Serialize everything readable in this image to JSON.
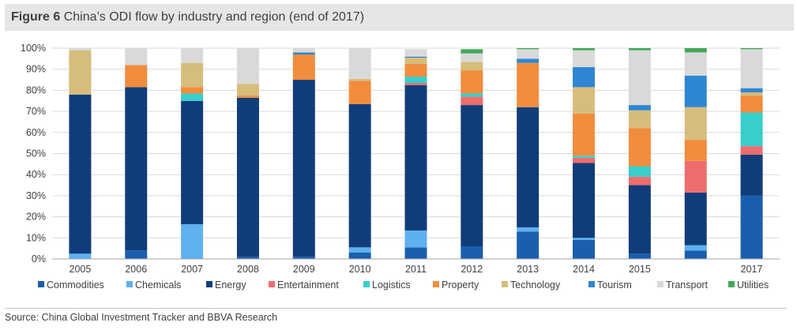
{
  "figure": {
    "label": "Figure 6",
    "caption": "China’s ODI flow by industry and region (end of 2017)"
  },
  "source": "Source: China Global Investment Tracker and BBVA Research",
  "chart_data": {
    "type": "bar",
    "stacked": true,
    "title": "China’s ODI flow by industry and region (end of 2017)",
    "xlabel": "",
    "ylabel": "",
    "ylim": [
      0,
      100
    ],
    "y_tick_values": [
      0,
      10,
      20,
      30,
      40,
      50,
      60,
      70,
      80,
      90,
      100
    ],
    "y_tick_labels": [
      "0%",
      "10%",
      "20%",
      "30%",
      "40%",
      "50%",
      "60%",
      "70%",
      "80%",
      "90%",
      "100%"
    ],
    "categories": [
      "2005",
      "2006",
      "2007",
      "2008",
      "2009",
      "2010",
      "2011",
      "2012",
      "2013",
      "2014",
      "2015",
      "",
      "2017"
    ],
    "grid": "horizontal",
    "legend_position": "bottom",
    "series": [
      {
        "name": "Commodities",
        "color": "#1a5fad",
        "values": [
          0,
          4,
          0,
          1,
          1,
          3,
          5.5,
          6,
          13,
          9,
          2.5,
          4,
          30
        ]
      },
      {
        "name": "Chemicals",
        "color": "#5fb0ef",
        "values": [
          2.5,
          0,
          16.5,
          0,
          0,
          2.5,
          8,
          0,
          2,
          1,
          0,
          2.5,
          0
        ]
      },
      {
        "name": "Energy",
        "color": "#103d7a",
        "values": [
          75.5,
          77.5,
          58.5,
          75.5,
          84,
          68,
          69,
          67,
          57,
          35.5,
          32.5,
          25,
          19.5
        ]
      },
      {
        "name": "Entertainment",
        "color": "#ee6d6d",
        "values": [
          0,
          0,
          0,
          0,
          0,
          0,
          1,
          4,
          0,
          2.5,
          4,
          15,
          4
        ]
      },
      {
        "name": "Logistics",
        "color": "#38cecb",
        "values": [
          0,
          0,
          3.5,
          0,
          0,
          0,
          3,
          1.5,
          0,
          1,
          5,
          0,
          16
        ]
      },
      {
        "name": "Property",
        "color": "#f28c3d",
        "values": [
          0,
          10.5,
          3,
          1,
          12,
          11,
          6,
          11,
          21,
          20,
          18,
          10,
          8
        ]
      },
      {
        "name": "Technology",
        "color": "#d6bd7c",
        "values": [
          21,
          0,
          11.5,
          5.5,
          0,
          1,
          3,
          4,
          0,
          12.5,
          8.5,
          15.5,
          1.5
        ]
      },
      {
        "name": "Tourism",
        "color": "#2f86d2",
        "values": [
          0,
          0,
          0,
          0,
          1,
          0,
          0.5,
          0,
          2,
          9.5,
          2.5,
          15,
          2
        ]
      },
      {
        "name": "Transport",
        "color": "#d9d9d9",
        "values": [
          1,
          8,
          7,
          17,
          2,
          14.5,
          3.5,
          4,
          4.5,
          8,
          26,
          11,
          18.5
        ]
      },
      {
        "name": "Utilities",
        "color": "#42a85c",
        "values": [
          0,
          0,
          0,
          0,
          0,
          0,
          0,
          2,
          0.5,
          1,
          1,
          2,
          0.5
        ]
      }
    ]
  }
}
